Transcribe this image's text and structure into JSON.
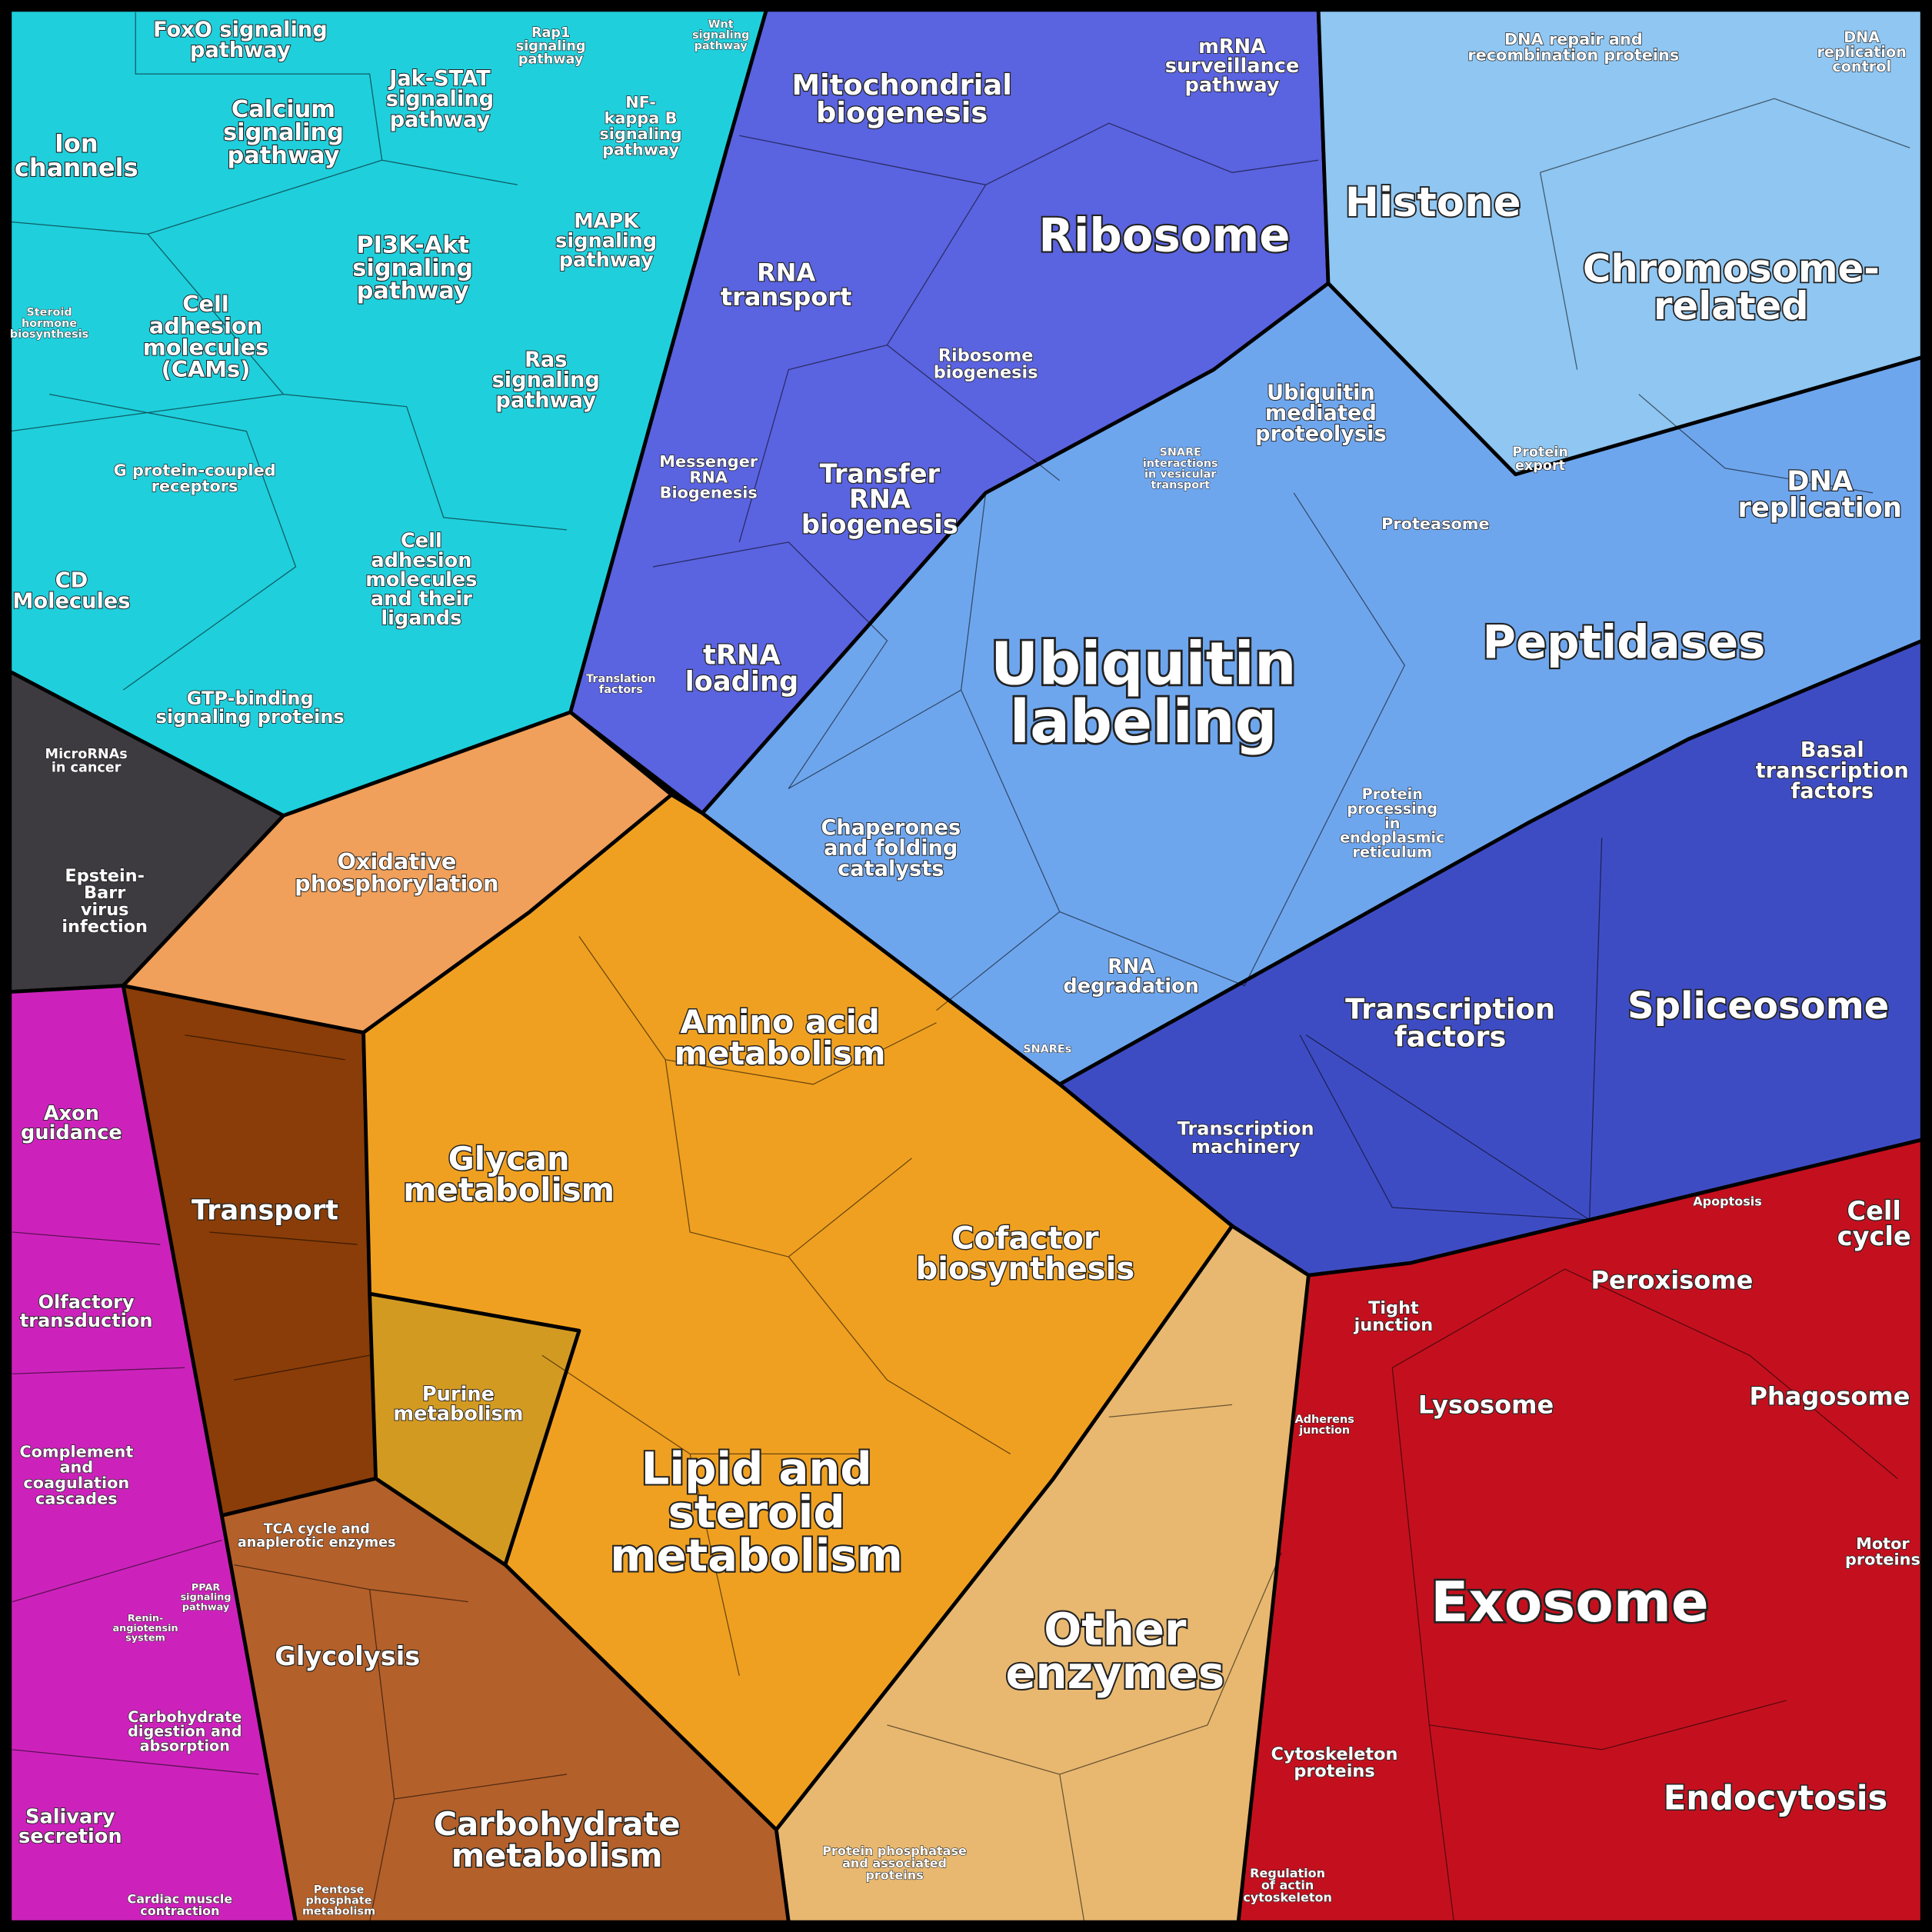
{
  "labels": [
    {
      "lines": [
        "FoxO signaling",
        "pathway"
      ]
    },
    {
      "lines": [
        "Ion",
        "channels"
      ]
    },
    {
      "lines": [
        "Calcium",
        "signaling",
        "pathway"
      ]
    },
    {
      "lines": [
        "Jak-STAT",
        "signaling",
        "pathway"
      ]
    },
    {
      "lines": [
        "Rap1",
        "signaling",
        "pathway"
      ]
    },
    {
      "lines": [
        "NF-",
        "kappa B",
        "signaling",
        "pathway"
      ]
    },
    {
      "lines": [
        "Wnt",
        "signaling",
        "pathway"
      ]
    },
    {
      "lines": [
        "MAPK",
        "signaling",
        "pathway"
      ]
    },
    {
      "lines": [
        "PI3K-Akt",
        "signaling",
        "pathway"
      ]
    },
    {
      "lines": [
        "Cell",
        "adhesion",
        "molecules",
        "(CAMs)"
      ]
    },
    {
      "lines": [
        "Steroid",
        "hormone",
        "biosynthesis"
      ]
    },
    {
      "lines": [
        "Ras",
        "signaling",
        "pathway"
      ]
    },
    {
      "lines": [
        "G protein-coupled",
        "receptors"
      ]
    },
    {
      "lines": [
        "Cell",
        "adhesion",
        "molecules",
        "and their",
        "ligands"
      ]
    },
    {
      "lines": [
        "CD",
        "Molecules"
      ]
    },
    {
      "lines": [
        "GTP-binding",
        "signaling proteins"
      ]
    },
    {
      "lines": [
        "MicroRNAs",
        "in cancer"
      ]
    },
    {
      "lines": [
        "Epstein-",
        "Barr",
        "virus",
        "infection"
      ]
    },
    {
      "lines": [
        "Axon",
        "guidance"
      ]
    },
    {
      "lines": [
        "Olfactory",
        "transduction"
      ]
    },
    {
      "lines": [
        "Complement",
        "and",
        "coagulation",
        "cascades"
      ]
    },
    {
      "lines": [
        "Carbohydrate",
        "digestion and",
        "absorption"
      ]
    },
    {
      "lines": [
        "Salivary",
        "secretion"
      ]
    },
    {
      "lines": [
        "Transport"
      ]
    },
    {
      "lines": [
        "Oxidative",
        "phosphorylation"
      ]
    },
    {
      "lines": [
        "Glycan",
        "metabolism"
      ]
    },
    {
      "lines": [
        "Amino acid",
        "metabolism"
      ]
    },
    {
      "lines": [
        "Cofactor",
        "biosynthesis"
      ]
    },
    {
      "lines": [
        "Purine",
        "metabolism"
      ]
    },
    {
      "lines": [
        "Lipid and",
        "steroid",
        "metabolism"
      ]
    },
    {
      "lines": [
        "TCA cycle and",
        "anaplerotic enzymes"
      ]
    },
    {
      "lines": [
        "Glycolysis"
      ]
    },
    {
      "lines": [
        "Carbohydrate",
        "metabolism"
      ]
    },
    {
      "lines": [
        "Pentose",
        "phosphate",
        "metabolism"
      ]
    },
    {
      "lines": [
        "Other",
        "enzymes"
      ]
    },
    {
      "lines": [
        "Protein phosphatase",
        "and associated",
        "proteins"
      ]
    },
    {
      "lines": [
        "Mitochondrial",
        "biogenesis"
      ]
    },
    {
      "lines": [
        "mRNA",
        "surveillance",
        "pathway"
      ]
    },
    {
      "lines": [
        "Ribosome"
      ]
    },
    {
      "lines": [
        "RNA",
        "transport"
      ]
    },
    {
      "lines": [
        "Ribosome",
        "biogenesis"
      ]
    },
    {
      "lines": [
        "Messenger",
        "RNA",
        "Biogenesis"
      ]
    },
    {
      "lines": [
        "Transfer",
        "RNA",
        "biogenesis"
      ]
    },
    {
      "lines": [
        "tRNA",
        "loading"
      ]
    },
    {
      "lines": [
        "Translation",
        "factors"
      ]
    },
    {
      "lines": [
        "Histone"
      ]
    },
    {
      "lines": [
        "DNA repair and",
        "recombination proteins"
      ]
    },
    {
      "lines": [
        "DNA",
        "replication",
        "control"
      ]
    },
    {
      "lines": [
        "Chromosome-",
        "related"
      ]
    },
    {
      "lines": [
        "Ubiquitin",
        "mediated",
        "proteolysis"
      ]
    },
    {
      "lines": [
        "SNARE",
        "interactions",
        "in vesicular",
        "transport"
      ]
    },
    {
      "lines": [
        "Protein",
        "export"
      ]
    },
    {
      "lines": [
        "Proteasome"
      ]
    },
    {
      "lines": [
        "DNA",
        "replication"
      ]
    },
    {
      "lines": [
        "Ubiquitin",
        "labeling"
      ]
    },
    {
      "lines": [
        "Peptidases"
      ]
    },
    {
      "lines": [
        "Chaperones",
        "and folding",
        "catalysts"
      ]
    },
    {
      "lines": [
        "Protein",
        "processing",
        "in",
        "endoplasmic",
        "reticulum"
      ]
    },
    {
      "lines": [
        "RNA",
        "degradation"
      ]
    },
    {
      "lines": [
        "SNAREs"
      ]
    },
    {
      "lines": [
        "Basal",
        "transcription",
        "factors"
      ]
    },
    {
      "lines": [
        "Transcription",
        "factors"
      ]
    },
    {
      "lines": [
        "Spliceosome"
      ]
    },
    {
      "lines": [
        "Transcription",
        "machinery"
      ]
    },
    {
      "lines": [
        "Apoptosis"
      ]
    },
    {
      "lines": [
        "Cell",
        "cycle"
      ]
    },
    {
      "lines": [
        "Peroxisome"
      ]
    },
    {
      "lines": [
        "Tight",
        "junction"
      ]
    },
    {
      "lines": [
        "Lysosome"
      ]
    },
    {
      "lines": [
        "Phagosome"
      ]
    },
    {
      "lines": [
        "Adherens",
        "junction"
      ]
    },
    {
      "lines": [
        "Motor",
        "proteins"
      ]
    },
    {
      "lines": [
        "Exosome"
      ]
    },
    {
      "lines": [
        "Cytoskeleton",
        "proteins"
      ]
    },
    {
      "lines": [
        "Endocytosis"
      ]
    },
    {
      "lines": [
        "Regulation",
        "of actin",
        "cytoskeleton"
      ]
    },
    {
      "lines": [
        "Cardiac muscle",
        "contraction"
      ]
    },
    {
      "lines": [
        "PPAR",
        "signaling",
        "pathway"
      ]
    },
    {
      "lines": [
        "Renin-",
        "angiotensin",
        "system"
      ]
    }
  ]
}
